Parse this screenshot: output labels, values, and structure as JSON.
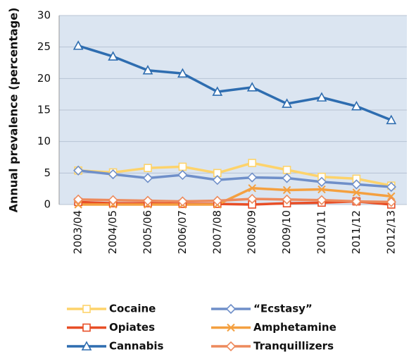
{
  "chart_data": {
    "type": "line",
    "y_label": "Annual prevalence (percentage)",
    "categories": [
      "2003/04",
      "2004/05",
      "2005/06",
      "2006/07",
      "2007/08",
      "2008/09",
      "2009/10",
      "2010/11",
      "2011/12",
      "2012/13"
    ],
    "series": [
      {
        "name": "Cocaine",
        "color": "#fdd36b",
        "marker": "square",
        "values": [
          5.4,
          5.1,
          5.8,
          6.0,
          5.0,
          6.6,
          5.5,
          4.4,
          4.1,
          3.0
        ]
      },
      {
        "name": "“Ecstasy”",
        "color": "#6f8fc9",
        "marker": "diamond",
        "values": [
          5.4,
          4.8,
          4.2,
          4.7,
          3.9,
          4.3,
          4.2,
          3.6,
          3.2,
          2.8
        ]
      },
      {
        "name": "Opiates",
        "color": "#e84e26",
        "marker": "square",
        "values": [
          0.4,
          0.2,
          0.2,
          0.1,
          0.1,
          0.0,
          0.2,
          0.3,
          0.5,
          0.0
        ]
      },
      {
        "name": "Amphetamine",
        "color": "#f4a040",
        "marker": "x",
        "values": [
          0.0,
          0.0,
          0.0,
          0.0,
          0.0,
          2.6,
          2.3,
          2.4,
          1.9,
          1.3
        ]
      },
      {
        "name": "Cannabis",
        "color": "#2e6db0",
        "marker": "triangle",
        "values": [
          25.2,
          23.5,
          21.3,
          20.8,
          17.9,
          18.6,
          16.0,
          17.0,
          15.6,
          13.4
        ]
      },
      {
        "name": "Tranquillizers",
        "color": "#ed8a5c",
        "marker": "diamond",
        "values": [
          0.8,
          0.7,
          0.6,
          0.5,
          0.6,
          0.9,
          0.8,
          0.7,
          0.5,
          0.4
        ]
      }
    ],
    "ylim": [
      0,
      30
    ],
    "yticks": [
      0,
      5,
      10,
      15,
      20,
      25,
      30
    ],
    "grid": true,
    "legend": "bottom"
  }
}
